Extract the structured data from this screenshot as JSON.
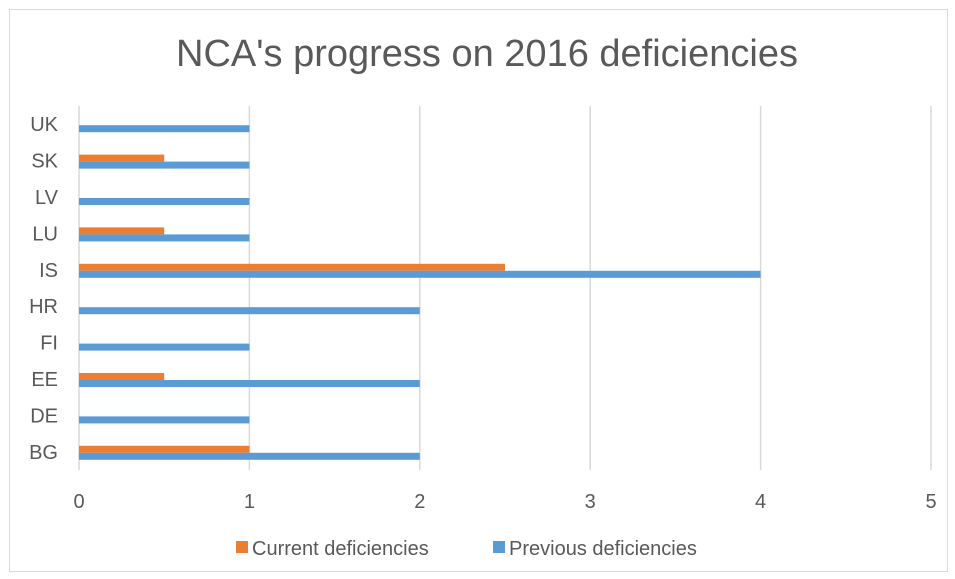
{
  "chart_data": {
    "type": "bar",
    "orientation": "horizontal",
    "title": "NCA's progress on 2016 deficiencies",
    "xlabel": "",
    "ylabel": "",
    "categories": [
      "BG",
      "DE",
      "EE",
      "FI",
      "HR",
      "IS",
      "LU",
      "LV",
      "SK",
      "UK"
    ],
    "series": [
      {
        "name": "Current deficiencies",
        "color": "#ed7d31",
        "values": [
          1,
          0,
          0.5,
          0,
          0,
          2.5,
          0.5,
          0,
          0.5,
          0
        ]
      },
      {
        "name": "Previous deficiencies",
        "color": "#5b9bd5",
        "values": [
          2,
          1,
          2,
          1,
          2,
          4,
          1,
          1,
          1,
          1
        ]
      }
    ],
    "xlim": [
      0,
      5
    ],
    "xticks": [
      "0",
      "1",
      "2",
      "3",
      "4",
      "5"
    ],
    "grid": "vertical",
    "legend_position": "bottom"
  }
}
